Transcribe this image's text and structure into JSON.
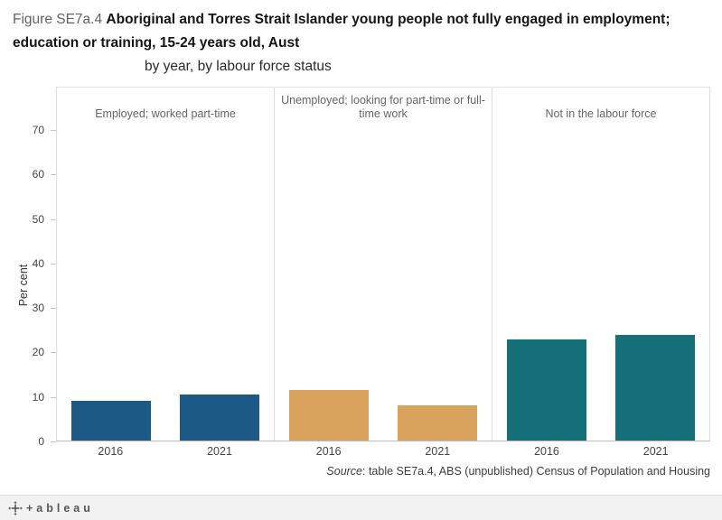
{
  "header": {
    "figure_label": "Figure SE7a.4",
    "title_line1": "Aboriginal and Torres Strait Islander young people not fully engaged in employment;",
    "title_line2": "education or training, 15-24 years old, Aust",
    "subtitle": "by year, by labour force status"
  },
  "chart_data": {
    "type": "bar",
    "title": "Figure SE7a.4 Aboriginal and Torres Strait Islander young people not fully engaged in employment; education or training, 15-24 years old, Aust — by year, by labour force status",
    "ylabel": "Per cent",
    "ylim": [
      0,
      70
    ],
    "yticks": [
      0,
      10,
      20,
      30,
      40,
      50,
      60,
      70
    ],
    "categories": [
      "2016",
      "2021"
    ],
    "grid": "off",
    "legend": "none",
    "panels": [
      {
        "label": "Employed; worked part-time",
        "color": "#1c5a85",
        "values": [
          9.0,
          10.3
        ]
      },
      {
        "label": "Unemployed; looking for part-time or full-time work",
        "color": "#d9a35e",
        "values": [
          11.4,
          8.0
        ]
      },
      {
        "label": "Not in the labour force",
        "color": "#15707a",
        "values": [
          22.8,
          23.8
        ]
      }
    ]
  },
  "source": {
    "label": "Source",
    "text": ": table SE7a.4, ABS (unpublished) Census of Population and Housing"
  },
  "footer": {
    "brand": "+ableau"
  }
}
